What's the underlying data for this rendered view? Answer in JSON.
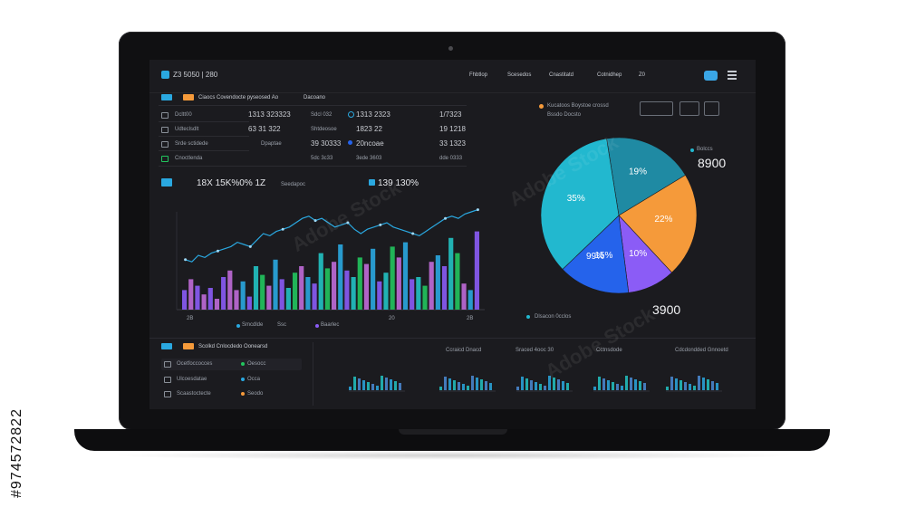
{
  "side_id": "#974572822",
  "header": {
    "title": "Z3 5050 | 280",
    "nav": [
      "Fhbtlop",
      "Scesedos",
      "Cnastitatd",
      "Cotnidhep"
    ],
    "user": "Z0"
  },
  "colors": {
    "screen_bg": "#1b1b1f",
    "accent_blue": "#2aa8e0",
    "orange": "#f59a3a",
    "purple": "#8b5cf6",
    "teal": "#22c3c3",
    "green": "#22c55e",
    "pink": "#c06bd8"
  },
  "stats_panel": {
    "title": "Ciaocs Covendocte pyseosed Ao",
    "subtitle": "Dacoano",
    "rows": [
      {
        "label": "Dcltt00",
        "v1": "1313 323323",
        "v2": "Sdcl 032",
        "v3": "1313 2323",
        "v4": "1/7323"
      },
      {
        "label": "Udteclsdlt",
        "v1": "63 31 322",
        "v2": "Shtdeosoe",
        "v3": "1823 22",
        "v4": "19 1218"
      },
      {
        "label": "Srde sctidede",
        "v1": "Dpaptae",
        "v2": "39 30333",
        "v3": "20ncoae",
        "v4": "33 1323"
      },
      {
        "label": "Cnoctlenda",
        "v1": "",
        "v2": "5dc 3c33",
        "v3": "3ede 3603",
        "v4": "dde 0333"
      }
    ]
  },
  "bar_chart": {
    "title": "18X 15K%0% 1Z",
    "subtitle": "Seedapoc",
    "secondary_title": "139 130%",
    "x_labels": [
      "2B",
      "Smcdlde",
      "Ssc",
      "Baarlec",
      "20",
      "2B"
    ]
  },
  "chart_data": {
    "type": "bar",
    "values": [
      18,
      28,
      22,
      14,
      20,
      10,
      30,
      36,
      18,
      26,
      12,
      40,
      32,
      22,
      46,
      28,
      20,
      34,
      40,
      30,
      24,
      52,
      38,
      44,
      60,
      36,
      30,
      48,
      42,
      56,
      26,
      34,
      58,
      48,
      62,
      28,
      30,
      22,
      44,
      50,
      40,
      66,
      52,
      24,
      18,
      72
    ],
    "line": [
      46,
      44,
      50,
      48,
      52,
      54,
      56,
      58,
      62,
      60,
      58,
      64,
      70,
      68,
      72,
      74,
      76,
      80,
      84,
      86,
      82,
      84,
      80,
      76,
      78,
      80,
      74,
      70,
      74,
      76,
      78,
      80,
      76,
      74,
      72,
      70,
      68,
      72,
      76,
      80,
      84,
      86,
      84,
      88,
      90,
      92
    ],
    "ylim": [
      0,
      100
    ]
  },
  "pie": {
    "legend_title": "Kucatoos Boystoe crossd",
    "legend_sub": "Bssdo Docsto",
    "segments": [
      {
        "label": "19%",
        "value": 19,
        "color": "#1f8aa3"
      },
      {
        "label": "22%",
        "value": 22,
        "color": "#f59a3a"
      },
      {
        "label": "10%",
        "value": 10,
        "color": "#8b5cf6"
      },
      {
        "label": "15%",
        "value": 15,
        "color": "#2563eb"
      },
      {
        "label": "35%",
        "value": 35,
        "color": "#22b8cf"
      }
    ],
    "extra_labels": [
      "99%"
    ],
    "side_value": "8900",
    "side_label": "Bolccs",
    "bottom_label": "Dlsacon 0cclos",
    "bottom_value": "3900"
  },
  "bottom_panel": {
    "title": "Scolkd Cnlocdedo Oonearsd",
    "rows": [
      "Ocetfoccocces",
      "Ulcoesdatae",
      "Scaastoctecte"
    ],
    "chips": [
      "Oesocc",
      "Occa",
      "Seodo"
    ],
    "mini_titles": [
      "Ccraicd Dnacd",
      "Sraced 4ooc 30",
      "Cctnsdode",
      "Cdcdondded Gnnoetd"
    ]
  }
}
